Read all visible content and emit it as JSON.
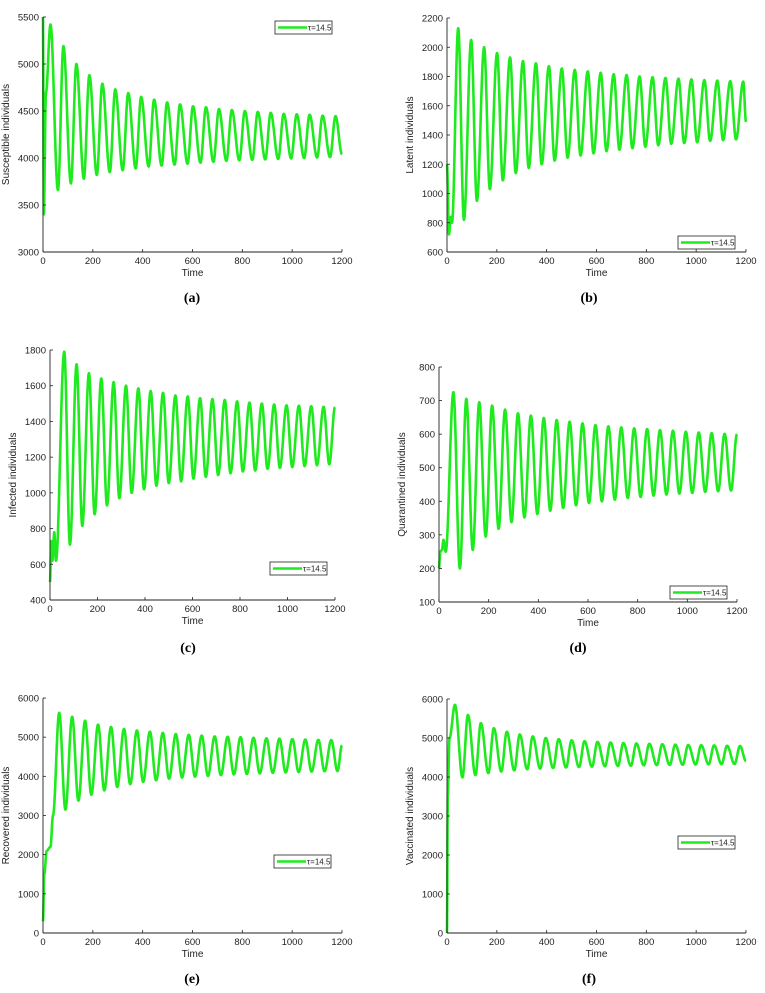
{
  "chart_data": [
    {
      "type": "line",
      "panel_label": "(a)",
      "xlabel": "Time",
      "ylabel": "Susceptible individuals",
      "xlim": [
        0,
        1200
      ],
      "ylim": [
        3000,
        5500
      ],
      "xticks": [
        0,
        200,
        400,
        600,
        800,
        1000,
        1200
      ],
      "yticks": [
        3000,
        3500,
        4000,
        4500,
        5000,
        5500
      ],
      "legend": {
        "label": "τ=14.5",
        "placement": "top-right"
      },
      "series": {
        "name": "τ=14.5",
        "color": "#1eea1e",
        "start": [
          [
            0,
            5500
          ],
          [
            3,
            3400
          ],
          [
            12,
            4700
          ]
        ],
        "period": 52,
        "peak_t0": 30,
        "trough_t0": 60,
        "peaks": [
          5420,
          5190,
          5000,
          4880,
          4790,
          4730,
          4690,
          4650,
          4620,
          4590,
          4570,
          4550,
          4540,
          4520,
          4510,
          4500,
          4490,
          4480,
          4470,
          4465,
          4460,
          4450,
          4445
        ],
        "troughs": [
          3660,
          3730,
          3780,
          3820,
          3850,
          3870,
          3890,
          3910,
          3920,
          3930,
          3940,
          3950,
          3960,
          3970,
          3975,
          3980,
          3985,
          3990,
          3995,
          4000,
          4005,
          4010
        ],
        "end": [
          1200,
          4040
        ]
      }
    },
    {
      "type": "line",
      "panel_label": "(b)",
      "xlabel": "Time",
      "ylabel": "Latent individuals",
      "xlim": [
        0,
        1200
      ],
      "ylim": [
        600,
        2200
      ],
      "xticks": [
        0,
        200,
        400,
        600,
        800,
        1000,
        1200
      ],
      "yticks": [
        600,
        800,
        1000,
        1200,
        1400,
        1600,
        1800,
        2000,
        2200
      ],
      "legend": {
        "label": "τ=14.5",
        "placement": "bottom-right"
      },
      "series": {
        "name": "τ=14.5",
        "color": "#1eea1e",
        "start": [
          [
            0,
            1200
          ],
          [
            8,
            720
          ],
          [
            15,
            840
          ],
          [
            20,
            800
          ]
        ],
        "period": 52,
        "peak_t0": 45,
        "trough_t0": 68,
        "peaks": [
          2130,
          2050,
          2000,
          1960,
          1930,
          1905,
          1890,
          1870,
          1855,
          1845,
          1835,
          1825,
          1815,
          1810,
          1800,
          1795,
          1790,
          1785,
          1780,
          1775,
          1772,
          1768,
          1765
        ],
        "troughs": [
          820,
          950,
          1030,
          1090,
          1140,
          1175,
          1200,
          1225,
          1245,
          1260,
          1275,
          1290,
          1300,
          1310,
          1320,
          1330,
          1340,
          1345,
          1350,
          1360,
          1365,
          1370
        ],
        "end": [
          1200,
          1490
        ]
      }
    },
    {
      "type": "line",
      "panel_label": "(c)",
      "xlabel": "Time",
      "ylabel": "Infected individuals",
      "xlim": [
        0,
        1200
      ],
      "ylim": [
        400,
        1800
      ],
      "xticks": [
        0,
        200,
        400,
        600,
        800,
        1000,
        1200
      ],
      "yticks": [
        400,
        600,
        800,
        1000,
        1200,
        1400,
        1600,
        1800
      ],
      "legend": {
        "label": "τ=14.5",
        "placement": "bottom-right"
      },
      "series": {
        "name": "τ=14.5",
        "color": "#1eea1e",
        "start": [
          [
            0,
            500
          ],
          [
            5,
            730
          ],
          [
            10,
            620
          ],
          [
            18,
            780
          ],
          [
            25,
            620
          ]
        ],
        "period": 52,
        "peak_t0": 60,
        "trough_t0": 84,
        "peaks": [
          1790,
          1720,
          1670,
          1640,
          1620,
          1600,
          1585,
          1570,
          1560,
          1545,
          1540,
          1530,
          1525,
          1520,
          1512,
          1505,
          1500,
          1495,
          1490,
          1488,
          1485,
          1482
        ],
        "troughs": [
          710,
          815,
          880,
          930,
          970,
          1000,
          1020,
          1040,
          1055,
          1065,
          1080,
          1090,
          1100,
          1110,
          1120,
          1125,
          1135,
          1140,
          1145,
          1150,
          1155,
          1160
        ],
        "end": [
          1200,
          1480
        ]
      }
    },
    {
      "type": "line",
      "panel_label": "(d)",
      "xlabel": "Time",
      "ylabel": "Quarantined individuals",
      "xlim": [
        0,
        1200
      ],
      "ylim": [
        100,
        800
      ],
      "xticks": [
        0,
        200,
        400,
        600,
        800,
        1000,
        1200
      ],
      "yticks": [
        100,
        200,
        300,
        400,
        500,
        600,
        700,
        800
      ],
      "legend": {
        "label": "τ=14.5",
        "placement": "bottom-right"
      },
      "series": {
        "name": "τ=14.5",
        "color": "#1eea1e",
        "start": [
          [
            0,
            200
          ],
          [
            5,
            250
          ],
          [
            12,
            255
          ],
          [
            18,
            285
          ],
          [
            27,
            250
          ]
        ],
        "period": 52,
        "peak_t0": 58,
        "trough_t0": 84,
        "peaks": [
          725,
          705,
          695,
          685,
          673,
          662,
          655,
          648,
          642,
          637,
          632,
          627,
          623,
          620,
          617,
          615,
          612,
          610,
          607,
          605,
          603,
          601
        ],
        "troughs": [
          200,
          255,
          295,
          318,
          338,
          352,
          362,
          372,
          380,
          388,
          395,
          400,
          405,
          410,
          413,
          417,
          420,
          423,
          425,
          428,
          430,
          432
        ],
        "end": [
          1200,
          600
        ]
      }
    },
    {
      "type": "line",
      "panel_label": "(e)",
      "xlabel": "Time",
      "ylabel": "Recovered individuals",
      "xlim": [
        0,
        1200
      ],
      "ylim": [
        0,
        6000
      ],
      "xticks": [
        0,
        200,
        400,
        600,
        800,
        1000,
        1200
      ],
      "yticks": [
        0,
        1000,
        2000,
        3000,
        4000,
        5000,
        6000
      ],
      "legend": {
        "label": "τ=14.5",
        "placement": "center-right"
      },
      "series": {
        "name": "τ=14.5",
        "color": "#1eea1e",
        "start": [
          [
            0,
            300
          ],
          [
            5,
            1500
          ],
          [
            15,
            2100
          ],
          [
            30,
            2200
          ],
          [
            40,
            3000
          ]
        ],
        "period": 52,
        "peak_t0": 65,
        "trough_t0": 90,
        "peaks": [
          5620,
          5520,
          5420,
          5320,
          5260,
          5210,
          5170,
          5140,
          5110,
          5080,
          5060,
          5040,
          5020,
          5010,
          5000,
          4985,
          4970,
          4960,
          4950,
          4940,
          4930,
          4925
        ],
        "troughs": [
          3150,
          3380,
          3530,
          3640,
          3730,
          3800,
          3860,
          3900,
          3940,
          3970,
          3990,
          4010,
          4030,
          4050,
          4060,
          4075,
          4090,
          4100,
          4110,
          4120,
          4130,
          4135
        ],
        "end": [
          1200,
          4790
        ]
      }
    },
    {
      "type": "line",
      "panel_label": "(f)",
      "xlabel": "Time",
      "ylabel": "Vaccinated individuals",
      "xlim": [
        0,
        1200
      ],
      "ylim": [
        0,
        6000
      ],
      "xticks": [
        0,
        200,
        400,
        600,
        800,
        1000,
        1200
      ],
      "yticks": [
        0,
        1000,
        2000,
        3000,
        4000,
        5000,
        6000
      ],
      "legend": {
        "label": "τ=14.5",
        "placement": "center-right"
      },
      "series": {
        "name": "τ=14.5",
        "color": "#1eea1e",
        "start": [
          [
            0,
            0
          ],
          [
            3,
            3500
          ],
          [
            10,
            5000
          ]
        ],
        "period": 52,
        "peak_t0": 32,
        "trough_t0": 62,
        "peaks": [
          5850,
          5590,
          5380,
          5250,
          5160,
          5090,
          5040,
          5000,
          4970,
          4940,
          4920,
          4900,
          4885,
          4870,
          4860,
          4850,
          4840,
          4830,
          4820,
          4815,
          4810,
          4800,
          4795
        ],
        "troughs": [
          3990,
          4050,
          4100,
          4140,
          4170,
          4200,
          4215,
          4230,
          4245,
          4255,
          4265,
          4275,
          4285,
          4290,
          4300,
          4305,
          4310,
          4315,
          4320,
          4325,
          4330,
          4335
        ],
        "end": [
          1200,
          4410
        ]
      }
    }
  ]
}
